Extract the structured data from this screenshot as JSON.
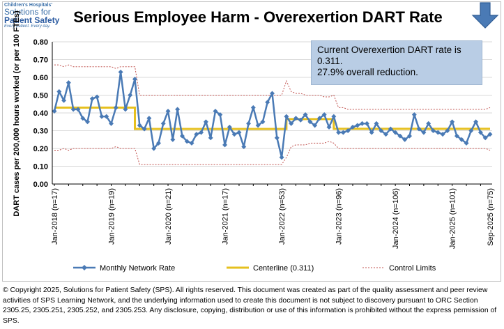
{
  "logo": {
    "line1": "Children's Hospitals'",
    "line2": "Solutions for",
    "line3": "Patient Safety",
    "line4": "Every patient. Every day."
  },
  "title": "Serious Employee Harm - Overexertion DART Rate",
  "direction_icon": "down-arrow-icon",
  "callout": {
    "line1": "Current Overexertion DART rate is",
    "line2": "0.311.",
    "line3": "27.9% overall reduction."
  },
  "chart_data": {
    "type": "line",
    "ylabel": "DART cases per 200,000 hours worked (or per 100 FTEs)",
    "ylim": [
      0,
      0.8
    ],
    "yticks": [
      "0.00",
      "0.10",
      "0.20",
      "0.30",
      "0.40",
      "0.50",
      "0.60",
      "0.70",
      "0.80"
    ],
    "xticks": [
      "Jan-2018 (n=17)",
      "Jan-2019 (n=19)",
      "Jan-2020 (n=21)",
      "Jan-2021 (n=17)",
      "Jan-2022 (n=53)",
      "Jan-2023 (n=96)",
      "Jan-2024 (n=106)",
      "Jan-2025 (n=101)",
      "Sep-2025 (n=75)"
    ],
    "xtick_index": [
      0,
      12,
      24,
      36,
      48,
      60,
      72,
      84,
      92
    ],
    "months": 93,
    "series": [
      {
        "name": "Monthly Network Rate",
        "values": [
          0.41,
          0.52,
          0.47,
          0.57,
          0.42,
          0.42,
          0.37,
          0.35,
          0.48,
          0.49,
          0.38,
          0.38,
          0.34,
          0.43,
          0.63,
          0.42,
          0.5,
          0.59,
          0.33,
          0.31,
          0.37,
          0.2,
          0.23,
          0.34,
          0.41,
          0.25,
          0.42,
          0.27,
          0.24,
          0.23,
          0.28,
          0.29,
          0.35,
          0.26,
          0.41,
          0.39,
          0.22,
          0.32,
          0.28,
          0.29,
          0.21,
          0.34,
          0.43,
          0.33,
          0.35,
          0.46,
          0.51,
          0.26,
          0.15,
          0.38,
          0.34,
          0.37,
          0.36,
          0.39,
          0.35,
          0.33,
          0.37,
          0.39,
          0.32,
          0.38,
          0.29,
          0.29,
          0.3,
          0.32,
          0.33,
          0.34,
          0.34,
          0.29,
          0.34,
          0.3,
          0.28,
          0.31,
          0.29,
          0.27,
          0.25,
          0.27,
          0.39,
          0.31,
          0.29,
          0.34,
          0.3,
          0.29,
          0.28,
          0.3,
          0.35,
          0.27,
          0.25,
          0.23,
          0.3,
          0.35,
          0.29,
          0.26,
          0.28
        ]
      },
      {
        "name": "Centerline (0.311)",
        "segments": [
          {
            "from": 0,
            "to": 17,
            "value": 0.43
          },
          {
            "from": 17,
            "to": 49,
            "value": 0.31
          },
          {
            "from": 49,
            "to": 59,
            "value": 0.365
          },
          {
            "from": 59,
            "to": 92,
            "value": 0.311
          }
        ]
      },
      {
        "name": "Control Limits",
        "ucl": [
          0.67,
          0.67,
          0.66,
          0.67,
          0.66,
          0.66,
          0.66,
          0.66,
          0.66,
          0.66,
          0.66,
          0.66,
          0.66,
          0.65,
          0.66,
          0.66,
          0.66,
          0.66,
          0.5,
          0.5,
          0.5,
          0.5,
          0.5,
          0.5,
          0.5,
          0.5,
          0.5,
          0.5,
          0.5,
          0.5,
          0.5,
          0.5,
          0.5,
          0.5,
          0.5,
          0.5,
          0.5,
          0.5,
          0.5,
          0.5,
          0.5,
          0.5,
          0.5,
          0.5,
          0.5,
          0.5,
          0.5,
          0.5,
          0.5,
          0.58,
          0.52,
          0.51,
          0.51,
          0.5,
          0.5,
          0.5,
          0.5,
          0.49,
          0.49,
          0.5,
          0.43,
          0.43,
          0.42,
          0.42,
          0.42,
          0.42,
          0.42,
          0.42,
          0.42,
          0.42,
          0.42,
          0.42,
          0.42,
          0.42,
          0.42,
          0.42,
          0.42,
          0.42,
          0.42,
          0.42,
          0.42,
          0.42,
          0.42,
          0.42,
          0.42,
          0.42,
          0.42,
          0.42,
          0.42,
          0.42,
          0.42,
          0.42,
          0.43
        ],
        "lcl": [
          0.19,
          0.19,
          0.2,
          0.19,
          0.2,
          0.2,
          0.2,
          0.2,
          0.2,
          0.2,
          0.2,
          0.2,
          0.2,
          0.21,
          0.2,
          0.2,
          0.2,
          0.2,
          0.11,
          0.11,
          0.11,
          0.11,
          0.11,
          0.11,
          0.11,
          0.11,
          0.11,
          0.11,
          0.11,
          0.11,
          0.11,
          0.11,
          0.11,
          0.11,
          0.11,
          0.11,
          0.11,
          0.11,
          0.11,
          0.11,
          0.11,
          0.11,
          0.11,
          0.11,
          0.11,
          0.11,
          0.11,
          0.11,
          0.11,
          0.15,
          0.21,
          0.22,
          0.22,
          0.22,
          0.23,
          0.23,
          0.23,
          0.23,
          0.24,
          0.23,
          0.2,
          0.2,
          0.2,
          0.2,
          0.2,
          0.2,
          0.2,
          0.2,
          0.2,
          0.2,
          0.2,
          0.2,
          0.2,
          0.2,
          0.2,
          0.2,
          0.2,
          0.2,
          0.2,
          0.2,
          0.2,
          0.2,
          0.2,
          0.2,
          0.2,
          0.2,
          0.2,
          0.2,
          0.2,
          0.2,
          0.2,
          0.2,
          0.19
        ]
      }
    ],
    "colors": {
      "series": "#4a7ab5",
      "centerline": "#e6c01f",
      "limits": "#c0504d",
      "grid": "#d9d9d9"
    }
  },
  "legend": {
    "series1": "Monthly Network Rate",
    "series2": "Centerline (0.311)",
    "series3": "Control Limits"
  },
  "footer": "© Copyright 2025, Solutions for Patient Safety (SPS). All rights reserved. This document was created as part of the quality assessment and peer review activities of SPS Learning Network, and the underlying information used to create this document is not subject to discovery pursuant to ORC Section 2305.25, 2305.251, 2305.252, and 2305.253. Any disclosure, copying, distribution or use of this information is prohibited without the express permission of SPS."
}
